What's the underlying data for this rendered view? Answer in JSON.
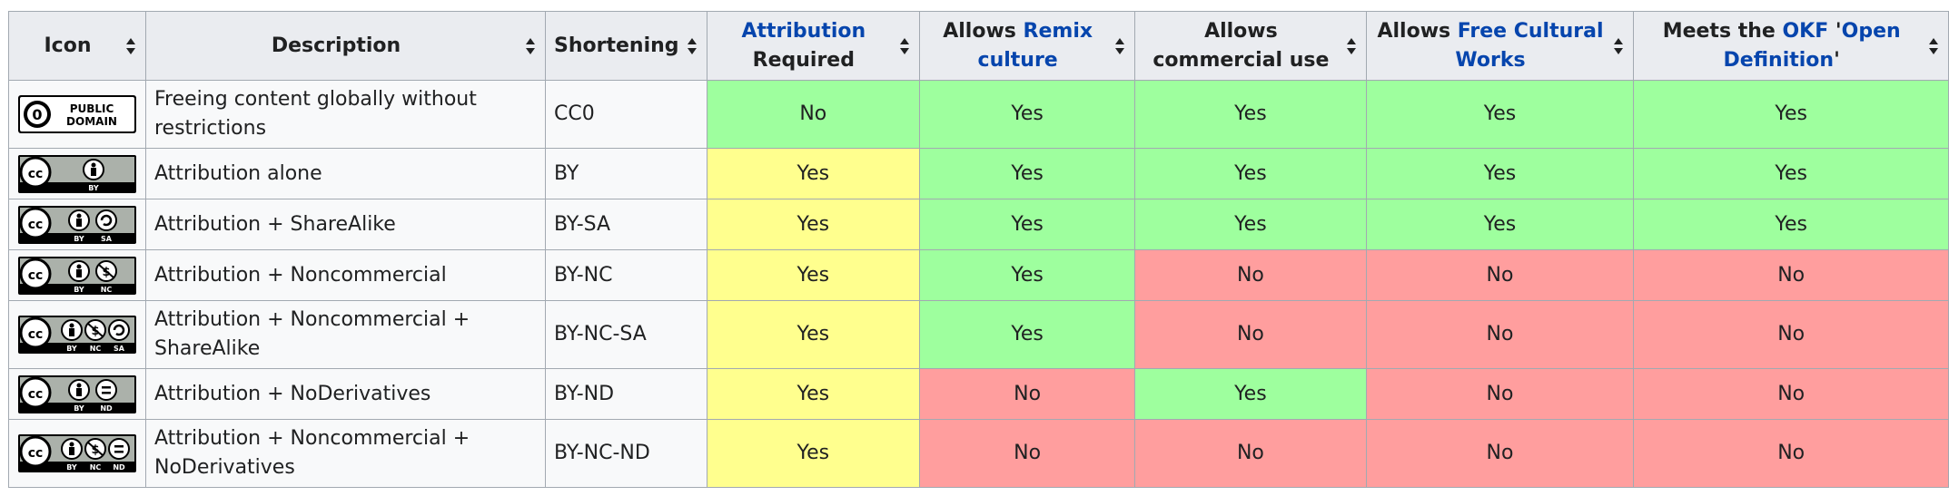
{
  "headers": {
    "icon": "Icon",
    "description": "Description",
    "shortening": "Shortening",
    "attribution_a": "Attribution",
    "attribution_b": "Required",
    "remix_a": "Allows ",
    "remix_link": "Remix culture",
    "commercial": "Allows commercial use",
    "fcw_a": "Allows ",
    "fcw_link": "Free Cultural Works",
    "okf_a": "Meets the ",
    "okf_link1": "OKF",
    "okf_b": " '",
    "okf_link2": "Open Definition",
    "okf_c": "'"
  },
  "colors": {
    "yes": "#9eff9e",
    "no": "#ff9e9e",
    "attribution_yes": "#ffff8e",
    "link": "#0645ad",
    "header_bg": "#eaecf0"
  },
  "rows": [
    {
      "icon": "cc0-public-domain-icon",
      "icon_text1": "PUBLIC",
      "icon_text2": "DOMAIN",
      "description": "Freeing content globally without restrictions",
      "shortening": "CC0",
      "attribution": "No",
      "remix": "Yes",
      "commercial": "Yes",
      "fcw": "Yes",
      "okf": "Yes"
    },
    {
      "icon": "cc-by-icon",
      "icon_labels": "BY",
      "description": "Attribution alone",
      "shortening": "BY",
      "attribution": "Yes",
      "remix": "Yes",
      "commercial": "Yes",
      "fcw": "Yes",
      "okf": "Yes"
    },
    {
      "icon": "cc-by-sa-icon",
      "icon_labels": "BY SA",
      "description": "Attribution + ShareAlike",
      "shortening": "BY-SA",
      "attribution": "Yes",
      "remix": "Yes",
      "commercial": "Yes",
      "fcw": "Yes",
      "okf": "Yes"
    },
    {
      "icon": "cc-by-nc-icon",
      "icon_labels": "BY NC",
      "description": "Attribution + Noncommercial",
      "shortening": "BY-NC",
      "attribution": "Yes",
      "remix": "Yes",
      "commercial": "No",
      "fcw": "No",
      "okf": "No"
    },
    {
      "icon": "cc-by-nc-sa-icon",
      "icon_labels": "BY NC SA",
      "description": "Attribution + Noncommercial + ShareAlike",
      "shortening": "BY-NC-SA",
      "attribution": "Yes",
      "remix": "Yes",
      "commercial": "No",
      "fcw": "No",
      "okf": "No"
    },
    {
      "icon": "cc-by-nd-icon",
      "icon_labels": "BY ND",
      "description": "Attribution + NoDerivatives",
      "shortening": "BY-ND",
      "attribution": "Yes",
      "remix": "No",
      "commercial": "Yes",
      "fcw": "No",
      "okf": "No"
    },
    {
      "icon": "cc-by-nc-nd-icon",
      "icon_labels": "BY NC ND",
      "description": "Attribution + Noncommercial + NoDerivatives",
      "shortening": "BY-NC-ND",
      "attribution": "Yes",
      "remix": "No",
      "commercial": "No",
      "fcw": "No",
      "okf": "No"
    }
  ]
}
